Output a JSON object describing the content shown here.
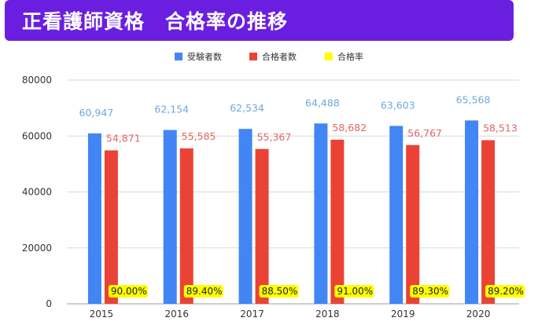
{
  "title": "正看護師資格　合格率の推移",
  "colors": {
    "title_bg": "#6a1fe0",
    "examinees": "#4285f4",
    "passers": "#ea4335",
    "rate": "#ffff00",
    "examinees_label": "#6fa8dc",
    "passers_label": "#e06666",
    "grid": "#d9d9d9"
  },
  "chart_data": {
    "type": "bar",
    "title": "正看護師資格　合格率の推移",
    "categories": [
      "2015",
      "2016",
      "2017",
      "2018",
      "2019",
      "2020"
    ],
    "series": [
      {
        "name": "受験者数",
        "values": [
          60947,
          62154,
          62534,
          64488,
          63603,
          65568
        ],
        "labels": [
          "60,947",
          "62,154",
          "62,534",
          "64,488",
          "63,603",
          "65,568"
        ]
      },
      {
        "name": "合格者数",
        "values": [
          54871,
          55585,
          55367,
          58682,
          56767,
          58513
        ],
        "labels": [
          "54,871",
          "55,585",
          "55,367",
          "58,682",
          "56,767",
          "58,513"
        ]
      },
      {
        "name": "合格率",
        "values": [
          90.0,
          89.4,
          88.5,
          91.0,
          89.3,
          89.2
        ],
        "labels": [
          "90.00%",
          "89.40%",
          "88.50%",
          "91.00%",
          "89.30%",
          "89.20%"
        ]
      }
    ],
    "ylim": [
      0,
      80000
    ],
    "yticks": [
      "0",
      "20000",
      "40000",
      "60000",
      "80000"
    ],
    "grid": true,
    "legend": "top-center"
  }
}
